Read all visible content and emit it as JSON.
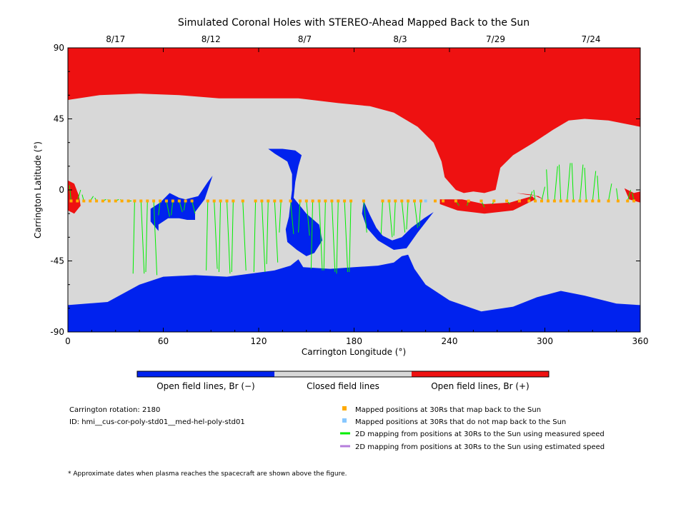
{
  "chart_data": {
    "type": "map",
    "title": "Simulated Coronal Holes with STEREO-Ahead Mapped Back to the Sun",
    "xlabel": "Carrington Longitude (°)",
    "ylabel": "Carrington Latitude (°)",
    "xlim": [
      0,
      360
    ],
    "ylim": [
      -90,
      90
    ],
    "xticks": [
      "0",
      "60",
      "120",
      "180",
      "240",
      "300",
      "360"
    ],
    "yticks": [
      "90",
      "45",
      "0",
      "-45",
      "-90"
    ],
    "top_dates": [
      {
        "label": "8/17",
        "lon": 30
      },
      {
        "label": "8/12",
        "lon": 90
      },
      {
        "label": "8/7",
        "lon": 149
      },
      {
        "label": "8/3",
        "lon": 209
      },
      {
        "label": "7/29",
        "lon": 269
      },
      {
        "label": "7/24",
        "lon": 329
      }
    ],
    "colorbar": [
      {
        "label": "Open field lines, Br (−)",
        "color": "#0022ee"
      },
      {
        "label": "Closed field lines",
        "color": "#d8d8d8"
      },
      {
        "label": "Open field lines, Br (+)",
        "color": "#ee1111"
      }
    ],
    "regions": {
      "negative_open": [
        {
          "name": "south-polar",
          "points": [
            [
              0,
              -73
            ],
            [
              25,
              -71
            ],
            [
              45,
              -60
            ],
            [
              60,
              -55
            ],
            [
              80,
              -54
            ],
            [
              100,
              -55
            ],
            [
              115,
              -53
            ],
            [
              130,
              -51
            ],
            [
              140,
              -48
            ],
            [
              145,
              -44
            ],
            [
              148,
              -49
            ],
            [
              165,
              -50
            ],
            [
              180,
              -49
            ],
            [
              195,
              -48
            ],
            [
              205,
              -46
            ],
            [
              210,
              -42
            ],
            [
              214,
              -41
            ],
            [
              218,
              -50
            ],
            [
              225,
              -60
            ],
            [
              240,
              -70
            ],
            [
              260,
              -77
            ],
            [
              280,
              -74
            ],
            [
              295,
              -68
            ],
            [
              310,
              -64
            ],
            [
              325,
              -67
            ],
            [
              345,
              -72
            ],
            [
              360,
              -73
            ],
            [
              360,
              -90
            ],
            [
              0,
              -90
            ]
          ]
        },
        {
          "name": "mid-60",
          "points": [
            [
              52,
              -12
            ],
            [
              58,
              -8
            ],
            [
              64,
              -2
            ],
            [
              70,
              -5
            ],
            [
              74,
              -6
            ],
            [
              82,
              -4
            ],
            [
              88,
              5
            ],
            [
              91,
              9
            ],
            [
              86,
              -6
            ],
            [
              80,
              -14
            ],
            [
              80,
              -19
            ],
            [
              75,
              -19
            ],
            [
              70,
              -18
            ],
            [
              63,
              -18
            ],
            [
              57,
              -22
            ],
            [
              57,
              -26
            ],
            [
              52,
              -20
            ]
          ]
        },
        {
          "name": "mid-148",
          "points": [
            [
              126,
              26
            ],
            [
              135,
              26
            ],
            [
              143,
              25
            ],
            [
              147,
              22
            ],
            [
              145,
              15
            ],
            [
              143,
              5
            ],
            [
              142,
              -5
            ],
            [
              150,
              -15
            ],
            [
              158,
              -22
            ],
            [
              160,
              -32
            ],
            [
              155,
              -40
            ],
            [
              150,
              -42
            ],
            [
              144,
              -38
            ],
            [
              138,
              -33
            ],
            [
              137,
              -25
            ],
            [
              139,
              -17
            ],
            [
              140,
              -8
            ],
            [
              141,
              0
            ],
            [
              141,
              10
            ],
            [
              138,
              18
            ],
            [
              130,
              23
            ]
          ]
        },
        {
          "name": "mid-200",
          "points": [
            [
              186,
              -7
            ],
            [
              190,
              -16
            ],
            [
              194,
              -24
            ],
            [
              198,
              -29
            ],
            [
              204,
              -32
            ],
            [
              210,
              -30
            ],
            [
              216,
              -24
            ],
            [
              224,
              -18
            ],
            [
              230,
              -14
            ],
            [
              220,
              -27
            ],
            [
              213,
              -37
            ],
            [
              205,
              -38
            ],
            [
              195,
              -32
            ],
            [
              188,
              -24
            ],
            [
              185,
              -15
            ]
          ]
        }
      ],
      "positive_open": [
        {
          "name": "north-polar",
          "points": [
            [
              0,
              90
            ],
            [
              360,
              90
            ],
            [
              360,
              40
            ],
            [
              340,
              44
            ],
            [
              325,
              45
            ],
            [
              315,
              44
            ],
            [
              305,
              38
            ],
            [
              293,
              30
            ],
            [
              280,
              22
            ],
            [
              272,
              14
            ],
            [
              269,
              0
            ],
            [
              262,
              -2
            ],
            [
              255,
              -1
            ],
            [
              249,
              -2
            ],
            [
              244,
              0
            ],
            [
              237,
              8
            ],
            [
              235,
              18
            ],
            [
              230,
              30
            ],
            [
              220,
              40
            ],
            [
              205,
              49
            ],
            [
              190,
              53
            ],
            [
              170,
              55
            ],
            [
              145,
              58
            ],
            [
              122,
              58
            ],
            [
              95,
              58
            ],
            [
              70,
              60
            ],
            [
              45,
              61
            ],
            [
              20,
              60
            ],
            [
              0,
              57
            ]
          ]
        },
        {
          "name": "low-lat-250",
          "points": [
            [
              234,
              -6
            ],
            [
              248,
              -6
            ],
            [
              262,
              -9
            ],
            [
              278,
              -8
            ],
            [
              292,
              -4
            ],
            [
              294,
              -6
            ],
            [
              280,
              -13
            ],
            [
              262,
              -15
            ],
            [
              245,
              -13
            ],
            [
              234,
              -9
            ]
          ]
        },
        {
          "name": "low-lat-295",
          "points": [
            [
              282,
              -2
            ],
            [
              292,
              -3
            ],
            [
              299,
              -6
            ],
            [
              296,
              -4
            ],
            [
              288,
              -3
            ]
          ]
        },
        {
          "name": "west-edge",
          "points": [
            [
              0,
              6
            ],
            [
              4,
              4
            ],
            [
              7,
              -4
            ],
            [
              8,
              -10
            ],
            [
              4,
              -15
            ],
            [
              0,
              -13
            ]
          ]
        },
        {
          "name": "east-edge",
          "points": [
            [
              350,
              1
            ],
            [
              356,
              -2
            ],
            [
              360,
              -1
            ],
            [
              360,
              -8
            ],
            [
              353,
              -6
            ]
          ]
        }
      ]
    },
    "series": [
      {
        "name": "Mapped positions at 30Rs that map back to the Sun",
        "color": "#ffaa00",
        "lat": -7,
        "lon": [
          2,
          6,
          10,
          14,
          18,
          22,
          26,
          30,
          34,
          38,
          42,
          46,
          50,
          54,
          58,
          62,
          66,
          70,
          74,
          78,
          88,
          92,
          96,
          100,
          104,
          110,
          118,
          122,
          126,
          130,
          134,
          140,
          146,
          150,
          154,
          158,
          162,
          166,
          170,
          174,
          178,
          186,
          198,
          202,
          206,
          210,
          214,
          218,
          222,
          231,
          236,
          244,
          252,
          260,
          268,
          276,
          284,
          290,
          294,
          298,
          302,
          306,
          310,
          314,
          318,
          322,
          326,
          330,
          334,
          340,
          346,
          352,
          356
        ]
      },
      {
        "name": "Mapped positions at 30Rs that do not map back to the Sun",
        "color": "#88c8ff",
        "lat": -7,
        "lon": [
          225
        ]
      },
      {
        "name": "2D mapping from positions at 30Rs to the Sun using measured speed",
        "color": "#00ee00",
        "lines": [
          [
            2,
            3
          ],
          [
            6,
            0
          ],
          [
            10,
            -3
          ],
          [
            14,
            -4
          ],
          [
            18,
            -5
          ],
          [
            22,
            -6
          ],
          [
            26,
            -6
          ],
          [
            30,
            -6
          ],
          [
            34,
            -6
          ],
          [
            38,
            -7
          ],
          [
            42,
            -53
          ],
          [
            46,
            -53
          ],
          [
            50,
            -52
          ],
          [
            54,
            -54
          ],
          [
            58,
            -16
          ],
          [
            62,
            -17
          ],
          [
            66,
            -16
          ],
          [
            70,
            -14
          ],
          [
            74,
            -13
          ],
          [
            78,
            -15
          ],
          [
            88,
            -51
          ],
          [
            92,
            -50
          ],
          [
            96,
            -52
          ],
          [
            100,
            -53
          ],
          [
            104,
            -52
          ],
          [
            110,
            -51
          ],
          [
            118,
            -52
          ],
          [
            122,
            -52
          ],
          [
            126,
            -47
          ],
          [
            130,
            -46
          ],
          [
            134,
            -27
          ],
          [
            140,
            -28
          ],
          [
            146,
            -27
          ],
          [
            150,
            -29
          ],
          [
            154,
            -50
          ],
          [
            158,
            -51
          ],
          [
            162,
            -51
          ],
          [
            166,
            -52
          ],
          [
            170,
            -53
          ],
          [
            174,
            -52
          ],
          [
            178,
            -52
          ],
          [
            186,
            -27
          ],
          [
            198,
            -28
          ],
          [
            202,
            -30
          ],
          [
            206,
            -29
          ],
          [
            210,
            -27
          ],
          [
            214,
            -25
          ],
          [
            218,
            -24
          ],
          [
            222,
            -23
          ],
          [
            244,
            -10
          ],
          [
            252,
            -10
          ],
          [
            260,
            -11
          ],
          [
            268,
            -9
          ],
          [
            276,
            -9
          ],
          [
            284,
            -8
          ],
          [
            290,
            -1
          ],
          [
            294,
            0
          ],
          [
            298,
            2
          ],
          [
            302,
            13
          ],
          [
            306,
            15
          ],
          [
            310,
            16
          ],
          [
            314,
            17
          ],
          [
            318,
            17
          ],
          [
            322,
            16
          ],
          [
            326,
            14
          ],
          [
            330,
            12
          ],
          [
            334,
            9
          ],
          [
            340,
            4
          ],
          [
            346,
            1
          ],
          [
            352,
            0
          ],
          [
            356,
            -2
          ]
        ]
      },
      {
        "name": "2D mapping from positions at 30Rs to the Sun using estimated speed",
        "color": "#b57edc",
        "lines": []
      }
    ]
  },
  "info": {
    "rotation": "Carrington rotation: 2180",
    "id": "ID: hmi__cus-cor-poly-std01__med-hel-poly-std01"
  },
  "footnote": "* Approximate dates when plasma reaches the spacecraft are shown above the figure."
}
